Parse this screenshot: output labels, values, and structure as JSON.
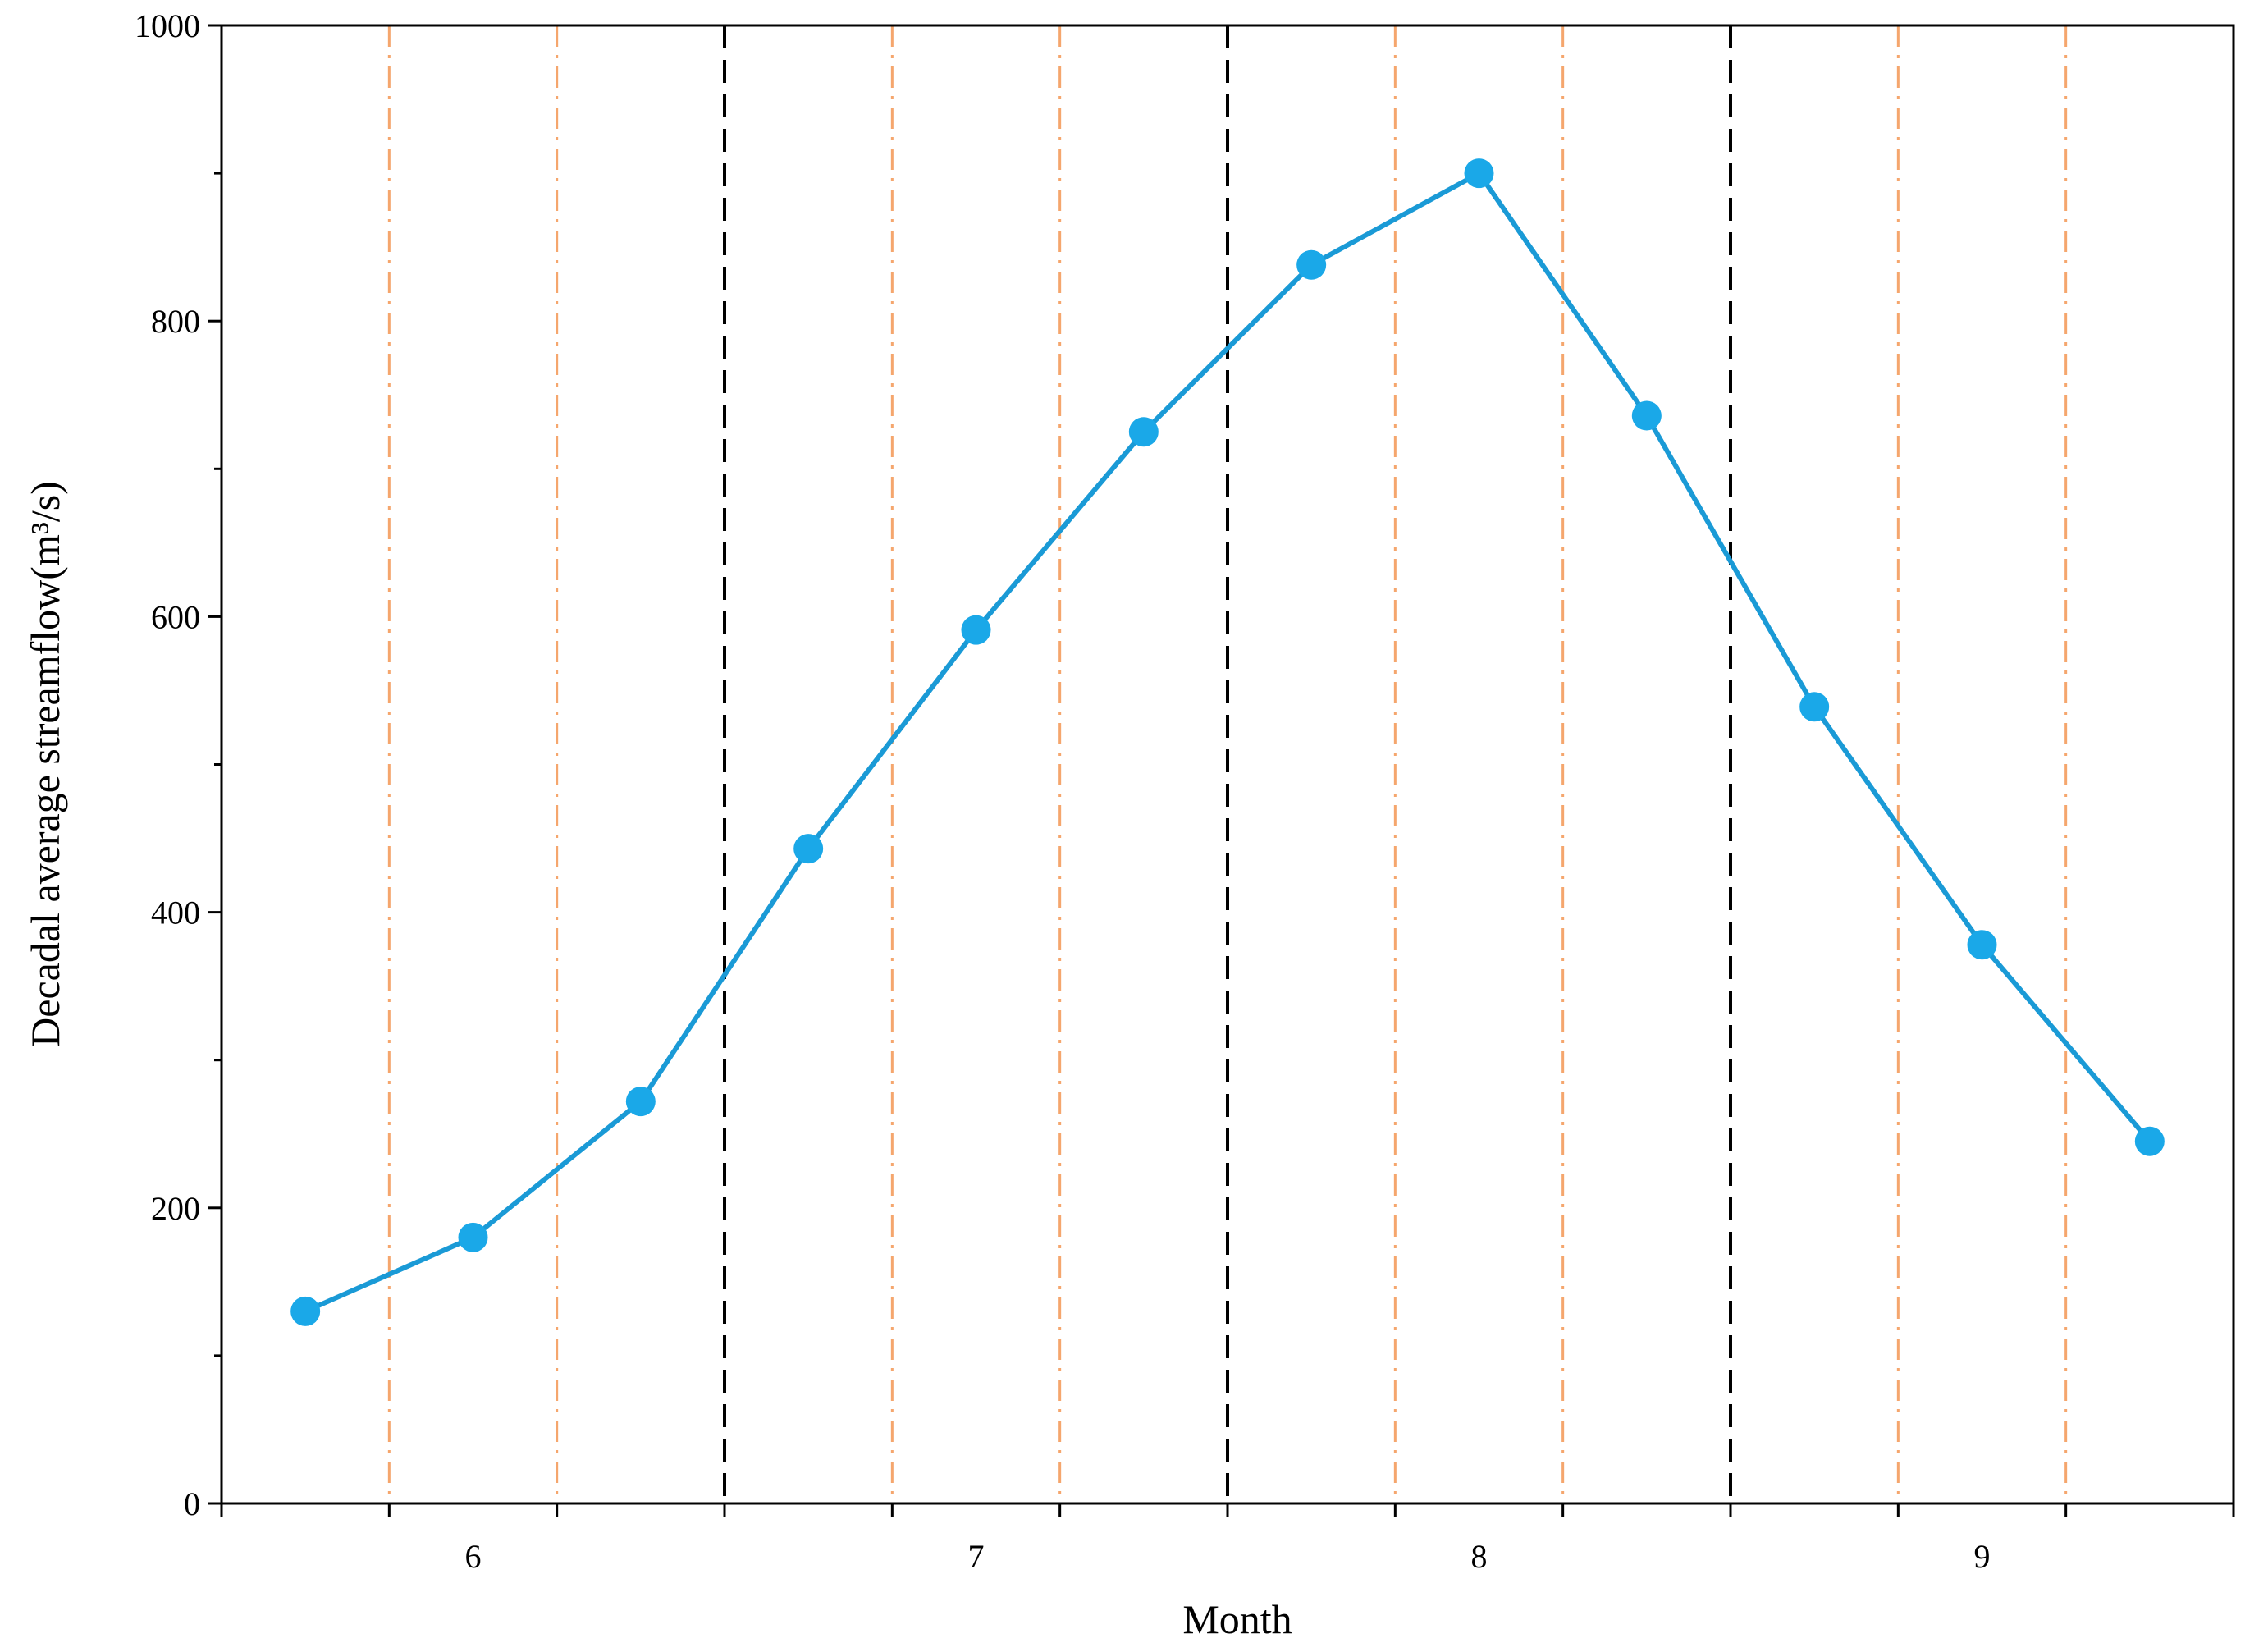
{
  "chart_data": {
    "type": "line",
    "x_label": "Month",
    "y_label": "Decadal average streamflow(m³/s)",
    "categories": [
      null,
      "6",
      null,
      null,
      "7",
      null,
      null,
      "8",
      null,
      null,
      "9",
      null
    ],
    "series": [
      {
        "name": "Decadal average streamflow",
        "color": "#1a9ad6",
        "marker_color": "#1aa8e8",
        "values": [
          130,
          180,
          272,
          443,
          591,
          725,
          838,
          900,
          736,
          539,
          378,
          245
        ]
      }
    ],
    "ylim": [
      0,
      1000
    ],
    "yticks": [
      0,
      200,
      400,
      600,
      800,
      1000
    ],
    "yminorticks": [
      100,
      300,
      500,
      700,
      900
    ],
    "month_line_color": "#000000",
    "decade_line_color": "#f5a66d"
  }
}
